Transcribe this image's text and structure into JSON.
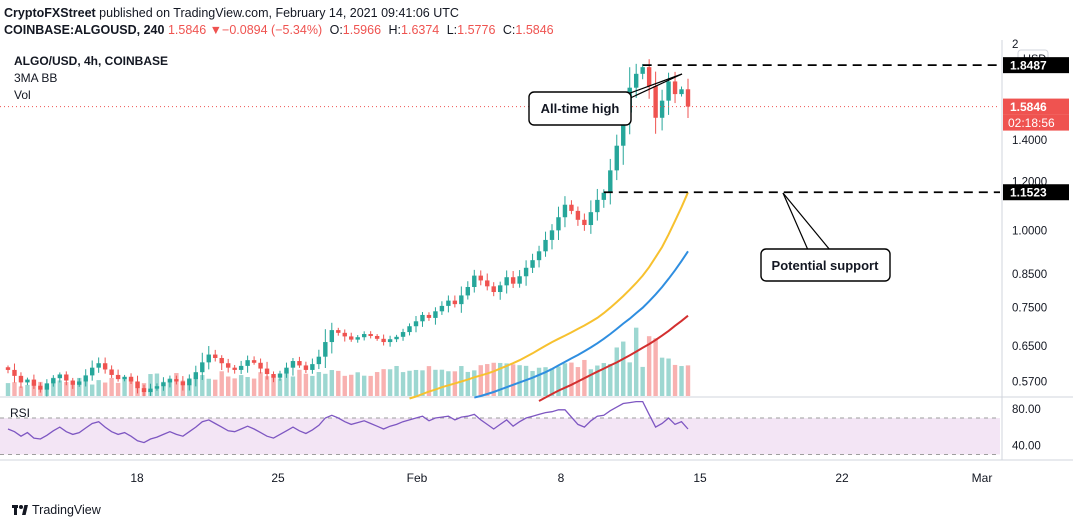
{
  "header": {
    "publisher": "CryptoFXStreet",
    "published_text": "published on TradingView.com, February 14, 2021 09:41:06 UTC",
    "symbol_line": "COINBASE:ALGOUSD, 240",
    "last": "1.5846",
    "change_arrow": "▼",
    "change": "−0.0894 (−5.34%)",
    "open_label": "O:",
    "open": "1.5966",
    "high_label": "H:",
    "high": "1.6374",
    "low_label": "L:",
    "low": "1.5776",
    "close_label": "C:",
    "close": "1.5846"
  },
  "legend": {
    "title": "ALGO/USD, 4h, COINBASE",
    "indicator1": "3MA BB",
    "indicator2": "Vol",
    "rsi": "RSI"
  },
  "annotations": {
    "ath": "All-time high",
    "support": "Potential support"
  },
  "footer": {
    "brand": "TradingView"
  },
  "colors": {
    "up": "#26a69a",
    "down": "#ef5350",
    "ma_yellow": "#f7c12f",
    "ma_blue": "#2f8ee0",
    "ma_red": "#d32f2f",
    "rsi_line": "#7e57c2",
    "rsi_band": "#f3e5f5"
  },
  "chart_data": {
    "type": "candlestick",
    "price_axis": {
      "scale": "log",
      "range": [
        0.54,
        2.0
      ],
      "ticks": [
        "2",
        "1.4000",
        "1.2000",
        "1.0000",
        "0.8500",
        "0.7500",
        "0.6500",
        "0.5700"
      ],
      "tick_values": [
        2.0,
        1.4,
        1.2,
        1.0,
        0.85,
        0.75,
        0.65,
        0.57
      ],
      "currency": "USD"
    },
    "price_labels": {
      "resistance": "1.8487",
      "resistance_value": 1.8487,
      "last": "1.5846",
      "last_value": 1.5846,
      "countdown": "02:18:56",
      "support": "1.1523",
      "support_value": 1.1523
    },
    "time_axis": {
      "labels": [
        "18",
        "25",
        "Feb",
        "8",
        "15",
        "22",
        "Mar"
      ]
    },
    "rsi_axis": {
      "ticks": [
        "80.00",
        "40.00"
      ],
      "tick_values": [
        80,
        40
      ],
      "band": [
        30,
        70
      ],
      "range": [
        25,
        92
      ]
    },
    "closes": [
      0.595,
      0.582,
      0.568,
      0.574,
      0.561,
      0.553,
      0.566,
      0.577,
      0.585,
      0.572,
      0.563,
      0.57,
      0.583,
      0.6,
      0.61,
      0.596,
      0.584,
      0.575,
      0.58,
      0.57,
      0.556,
      0.548,
      0.555,
      0.56,
      0.568,
      0.575,
      0.57,
      0.562,
      0.575,
      0.59,
      0.612,
      0.63,
      0.622,
      0.61,
      0.6,
      0.595,
      0.604,
      0.617,
      0.611,
      0.598,
      0.586,
      0.578,
      0.587,
      0.6,
      0.615,
      0.605,
      0.595,
      0.608,
      0.625,
      0.66,
      0.69,
      0.683,
      0.674,
      0.666,
      0.672,
      0.68,
      0.675,
      0.668,
      0.66,
      0.667,
      0.673,
      0.685,
      0.7,
      0.713,
      0.73,
      0.722,
      0.74,
      0.755,
      0.77,
      0.76,
      0.785,
      0.81,
      0.845,
      0.83,
      0.812,
      0.795,
      0.815,
      0.84,
      0.82,
      0.843,
      0.87,
      0.895,
      0.925,
      0.965,
      1.0,
      1.05,
      1.1,
      1.075,
      1.04,
      1.02,
      1.07,
      1.12,
      1.15,
      1.25,
      1.37,
      1.55,
      1.7,
      1.79,
      1.835,
      1.71,
      1.52,
      1.62,
      1.74,
      1.66,
      1.69,
      1.5846
    ],
    "ma_yellow": [
      0.535,
      0.539,
      0.544,
      0.549,
      0.553,
      0.558,
      0.562,
      0.566,
      0.57,
      0.574,
      0.579,
      0.583,
      0.587,
      0.592,
      0.598,
      0.604,
      0.61,
      0.617,
      0.625,
      0.633,
      0.642,
      0.651,
      0.66,
      0.668,
      0.676,
      0.684,
      0.693,
      0.702,
      0.712,
      0.722,
      0.735,
      0.75,
      0.766,
      0.783,
      0.802,
      0.822,
      0.845,
      0.872,
      0.905,
      0.94,
      0.985,
      1.035,
      1.09,
      1.152
    ],
    "ma_blue": [
      0.537,
      0.54,
      0.544,
      0.548,
      0.553,
      0.558,
      0.563,
      0.568,
      0.573,
      0.578,
      0.584,
      0.59,
      0.597,
      0.605,
      0.613,
      0.621,
      0.629,
      0.638,
      0.647,
      0.657,
      0.668,
      0.68,
      0.693,
      0.707,
      0.72,
      0.735,
      0.75,
      0.768,
      0.788,
      0.81,
      0.835,
      0.862,
      0.892,
      0.925
    ],
    "ma_red": [
      0.53,
      0.537,
      0.544,
      0.551,
      0.557,
      0.563,
      0.57,
      0.577,
      0.584,
      0.591,
      0.598,
      0.605,
      0.612,
      0.62,
      0.628,
      0.637,
      0.646,
      0.655,
      0.665,
      0.676,
      0.688,
      0.701,
      0.714,
      0.728
    ],
    "rsi": [
      58,
      55,
      50,
      54,
      48,
      47,
      51,
      56,
      60,
      55,
      52,
      54,
      59,
      64,
      66,
      60,
      55,
      52,
      54,
      50,
      45,
      43,
      47,
      49,
      52,
      55,
      52,
      50,
      55,
      60,
      66,
      68,
      64,
      60,
      56,
      55,
      58,
      61,
      58,
      54,
      50,
      48,
      52,
      56,
      60,
      56,
      53,
      57,
      62,
      70,
      73,
      70,
      66,
      63,
      65,
      67,
      64,
      61,
      58,
      61,
      63,
      66,
      68,
      70,
      72,
      67,
      70,
      71,
      72,
      68,
      71,
      72,
      74,
      68,
      63,
      58,
      63,
      68,
      61,
      66,
      70,
      72,
      74,
      76,
      77,
      79,
      79,
      71,
      63,
      60,
      67,
      72,
      73,
      78,
      82,
      86,
      87,
      88,
      88,
      74,
      60,
      64,
      70,
      63,
      66,
      58
    ]
  }
}
